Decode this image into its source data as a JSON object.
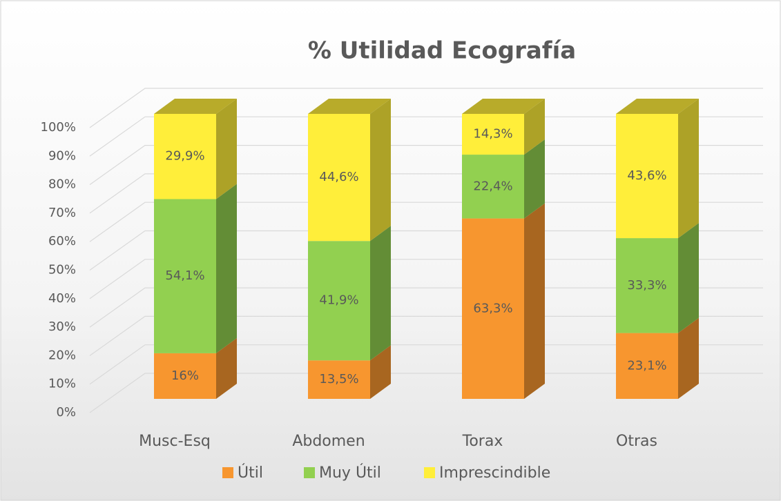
{
  "chart_data": {
    "type": "bar3d_stacked",
    "title": "% Utilidad Ecografía",
    "categories": [
      "Musc-Esq",
      "Abdomen",
      "Torax",
      "Otras"
    ],
    "series": [
      {
        "name": "Útil",
        "color": "#f7962f",
        "values": [
          16,
          13.5,
          63.3,
          23.1
        ],
        "value_labels": [
          "16%",
          "13,5%",
          "63,3%",
          "23,1%"
        ]
      },
      {
        "name": "Muy Útil",
        "color": "#92d050",
        "values": [
          54.1,
          41.9,
          22.4,
          33.3
        ],
        "value_labels": [
          "54,1%",
          "41,9%",
          "22,4%",
          "33,3%"
        ]
      },
      {
        "name": "Imprescindible",
        "color": "#ffee3a",
        "values": [
          29.9,
          44.6,
          14.3,
          43.6
        ],
        "value_labels": [
          "29,9%",
          "44,6%",
          "14,3%",
          "43,6%"
        ]
      }
    ],
    "ylim": [
      0,
      100
    ],
    "yticks": [
      {
        "value": 0,
        "label": "0%"
      },
      {
        "value": 10,
        "label": "10%"
      },
      {
        "value": 20,
        "label": "20%"
      },
      {
        "value": 30,
        "label": "30%"
      },
      {
        "value": 40,
        "label": "40%"
      },
      {
        "value": 50,
        "label": "50%"
      },
      {
        "value": 60,
        "label": "60%"
      },
      {
        "value": 70,
        "label": "70%"
      },
      {
        "value": 80,
        "label": "80%"
      },
      {
        "value": 90,
        "label": "90%"
      },
      {
        "value": 100,
        "label": "100%"
      }
    ],
    "grid": true,
    "legend": "bottom"
  }
}
